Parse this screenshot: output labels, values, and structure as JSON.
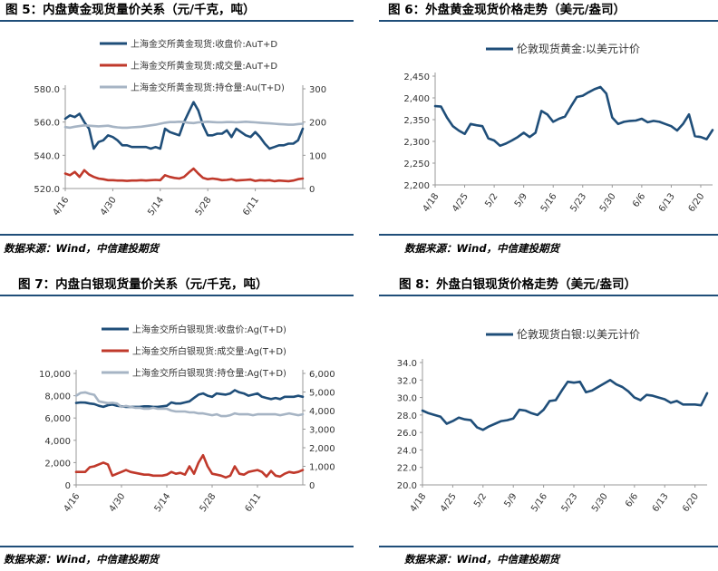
{
  "figures": [
    {
      "title": "图 5：内盘黄金现货量价关系（元/千克，吨）",
      "source": "数据来源：Wind，中信建投期货"
    },
    {
      "title": "图 6：外盘黄金现货价格走势（美元/盎司）",
      "source": "数据来源：Wind，中信建投期货"
    },
    {
      "title": "图 7：内盘白银现货量价关系（元/千克，吨）",
      "source": "数据来源：Wind，中信建投期货"
    },
    {
      "title": "图 8：外盘白银现货价格走势（美元/盎司）",
      "source": "数据来源：Wind，中信建投期货"
    }
  ],
  "colors": {
    "dark_blue": "#1f4e79",
    "red": "#c0392b",
    "gray": "#a6b4c4"
  },
  "chart_data": [
    {
      "type": "line",
      "title": "",
      "xticks": [
        "4/16",
        "4/30",
        "5/14",
        "5/28",
        "6/11"
      ],
      "xtick_index": [
        0,
        10,
        20,
        30,
        40
      ],
      "n_points": 51,
      "ylim_left": [
        520,
        580
      ],
      "yticks_left": [
        "520.0",
        "540.0",
        "560.0",
        "580.0"
      ],
      "ylim_right": [
        0,
        300
      ],
      "yticks_right": [
        "0",
        "100",
        "200",
        "300"
      ],
      "legend_position": "top-left",
      "series": [
        {
          "name": "上海金交所黄金现货:收盘价:AuT+D",
          "axis": "left",
          "color": "#1f4e79",
          "values": [
            562,
            564,
            563,
            565,
            560,
            556,
            544,
            548,
            549,
            552,
            551,
            549,
            546,
            546,
            545,
            545,
            545,
            545,
            544,
            545,
            544,
            556,
            554,
            553,
            552,
            560,
            566,
            572,
            567,
            558,
            552,
            552,
            553,
            553,
            555,
            551,
            556,
            554,
            552,
            551,
            554,
            551,
            547,
            544,
            545,
            546,
            546,
            547,
            547,
            549,
            556
          ]
        },
        {
          "name": "上海金交所黄金现货:成交量:AuT+D",
          "axis": "right",
          "color": "#c0392b",
          "values": [
            45,
            40,
            50,
            35,
            55,
            42,
            35,
            30,
            28,
            25,
            25,
            24,
            24,
            23,
            24,
            24,
            25,
            24,
            25,
            26,
            25,
            40,
            35,
            32,
            30,
            35,
            48,
            60,
            45,
            32,
            28,
            30,
            28,
            25,
            26,
            28,
            24,
            25,
            26,
            27,
            23,
            25,
            24,
            25,
            22,
            24,
            23,
            22,
            24,
            28,
            30
          ]
        },
        {
          "name": "上海金交所黄金现货:持仓量:Au(T+D)",
          "axis": "right",
          "color": "#a6b4c4",
          "values": [
            185,
            183,
            186,
            188,
            190,
            189,
            188,
            187,
            188,
            189,
            186,
            184,
            183,
            183,
            184,
            185,
            186,
            188,
            190,
            192,
            195,
            198,
            200,
            200,
            201,
            200,
            198,
            197,
            199,
            200,
            201,
            200,
            199,
            199,
            200,
            200,
            199,
            200,
            201,
            200,
            199,
            198,
            197,
            196,
            195,
            194,
            193,
            192,
            192,
            194,
            195
          ]
        }
      ]
    },
    {
      "type": "line",
      "title": "",
      "xticks": [
        "4/18",
        "4/25",
        "5/2",
        "5/9",
        "5/16",
        "5/23",
        "5/30",
        "6/6",
        "6/13",
        "6/20"
      ],
      "xtick_index": [
        0,
        5,
        10,
        15,
        20,
        25,
        30,
        35,
        40,
        45
      ],
      "n_points": 48,
      "ylim": [
        2200,
        2450
      ],
      "yticks": [
        "2,200",
        "2,250",
        "2,300",
        "2,350",
        "2,400",
        "2,450"
      ],
      "legend_position": "top-left",
      "series": [
        {
          "name": "伦敦现货黄金:以美元计价",
          "color": "#1f4e79",
          "values": [
            2381,
            2380,
            2355,
            2335,
            2325,
            2317,
            2340,
            2337,
            2335,
            2307,
            2302,
            2290,
            2295,
            2302,
            2310,
            2320,
            2310,
            2320,
            2370,
            2362,
            2345,
            2352,
            2357,
            2380,
            2402,
            2405,
            2413,
            2420,
            2425,
            2410,
            2355,
            2340,
            2345,
            2347,
            2348,
            2352,
            2344,
            2347,
            2345,
            2340,
            2335,
            2325,
            2340,
            2362,
            2312,
            2310,
            2305,
            2326
          ]
        }
      ]
    },
    {
      "type": "line",
      "title": "",
      "xticks": [
        "4/16",
        "4/30",
        "5/14",
        "5/28",
        "6/11"
      ],
      "xtick_index": [
        0,
        10,
        20,
        30,
        40
      ],
      "n_points": 51,
      "ylim_left": [
        0,
        10000
      ],
      "yticks_left": [
        "0",
        "2,000",
        "4,000",
        "6,000",
        "8,000",
        "10,000"
      ],
      "ylim_right": [
        0,
        6000
      ],
      "yticks_right": [
        "0",
        "1,000",
        "2,000",
        "3,000",
        "4,000",
        "5,000",
        "6,000"
      ],
      "legend_position": "top-left",
      "series": [
        {
          "name": "上海金交所白银现货:收盘价:Ag(T+D)",
          "axis": "left",
          "color": "#1f4e79",
          "values": [
            7350,
            7400,
            7380,
            7300,
            7250,
            7100,
            7000,
            7150,
            7200,
            7100,
            7050,
            7000,
            7000,
            7000,
            7000,
            7050,
            7050,
            7000,
            7000,
            7050,
            7100,
            7400,
            7300,
            7300,
            7400,
            7500,
            7800,
            8100,
            8200,
            8000,
            7900,
            8200,
            8150,
            8100,
            8200,
            8500,
            8300,
            8200,
            8000,
            8100,
            8200,
            7900,
            7800,
            7700,
            7800,
            7700,
            7900,
            7900,
            7900,
            8000,
            7900
          ]
        },
        {
          "name": "上海金交所白银现货:成交量:Ag(T+D)",
          "axis": "right",
          "color": "#c0392b",
          "values": [
            700,
            700,
            700,
            950,
            1000,
            1100,
            1200,
            1100,
            500,
            600,
            700,
            800,
            700,
            650,
            600,
            550,
            550,
            500,
            500,
            500,
            550,
            700,
            600,
            650,
            550,
            1000,
            600,
            1200,
            1600,
            1000,
            600,
            550,
            500,
            400,
            500,
            1000,
            600,
            550,
            700,
            750,
            800,
            700,
            450,
            750,
            500,
            450,
            600,
            700,
            650,
            700,
            800
          ]
        },
        {
          "name": "上海金交所白银现货:持仓量:Ag(T+D)",
          "axis": "right",
          "color": "#a6b4c4",
          "values": [
            4800,
            4950,
            4980,
            4900,
            4850,
            4500,
            4450,
            4400,
            4420,
            4380,
            4200,
            4250,
            4200,
            4150,
            4150,
            4100,
            4100,
            4150,
            4100,
            4100,
            4100,
            4000,
            3950,
            3950,
            3950,
            3900,
            3900,
            3850,
            3850,
            3800,
            3750,
            3800,
            3700,
            3700,
            3750,
            3850,
            3800,
            3800,
            3800,
            3750,
            3800,
            3800,
            3800,
            3800,
            3800,
            3750,
            3800,
            3850,
            3800,
            3750,
            3800
          ]
        }
      ]
    },
    {
      "type": "line",
      "title": "",
      "xticks": [
        "4/18",
        "4/25",
        "5/2",
        "5/9",
        "5/16",
        "5/23",
        "5/30",
        "6/6",
        "6/13",
        "6/20"
      ],
      "xtick_index": [
        0,
        5,
        10,
        15,
        20,
        25,
        30,
        35,
        40,
        45
      ],
      "n_points": 48,
      "ylim": [
        20,
        34
      ],
      "yticks": [
        "20.0",
        "22.0",
        "24.0",
        "26.0",
        "28.0",
        "30.0",
        "32.0",
        "34.0"
      ],
      "legend_position": "top-left",
      "series": [
        {
          "name": "伦敦现货白银:以美元计价",
          "color": "#1f4e79",
          "values": [
            28.5,
            28.2,
            28.0,
            27.8,
            27.0,
            27.3,
            27.7,
            27.5,
            27.4,
            26.6,
            26.3,
            26.7,
            27.0,
            27.3,
            27.4,
            27.6,
            28.6,
            28.5,
            28.2,
            28.0,
            28.6,
            29.6,
            29.7,
            30.8,
            31.8,
            31.7,
            31.8,
            30.6,
            30.8,
            31.2,
            31.6,
            32.0,
            31.5,
            31.2,
            30.7,
            30.0,
            29.7,
            30.3,
            30.2,
            30.0,
            29.8,
            29.4,
            29.6,
            29.2,
            29.2,
            29.2,
            29.1,
            30.5
          ]
        }
      ]
    }
  ]
}
